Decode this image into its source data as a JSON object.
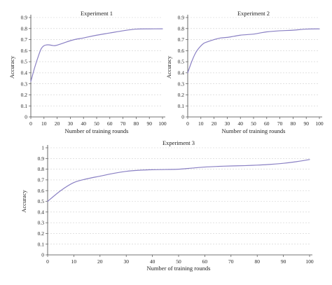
{
  "chart_data": [
    {
      "type": "line",
      "title": "Experiment 1",
      "xlabel": "Number of training rounds",
      "ylabel": "Accuracy",
      "xlim": [
        0,
        100
      ],
      "ylim": [
        0,
        0.9
      ],
      "xticks": [
        "0",
        "10",
        "20",
        "30",
        "40",
        "50",
        "60",
        "70",
        "80",
        "90",
        "100"
      ],
      "yticks": [
        "0",
        "0.1",
        "0.2",
        "0.3",
        "0.4",
        "0.5",
        "0.6",
        "0.7",
        "0.8",
        "0.9"
      ],
      "grid": "horizontal dashed",
      "series": [
        {
          "color": "#8a80c4",
          "x": [
            0,
            3,
            6,
            8,
            10,
            12,
            14,
            16,
            18,
            20,
            25,
            30,
            35,
            40,
            50,
            60,
            70,
            80,
            90,
            100
          ],
          "y": [
            0.32,
            0.45,
            0.56,
            0.62,
            0.645,
            0.652,
            0.652,
            0.648,
            0.645,
            0.65,
            0.67,
            0.69,
            0.705,
            0.715,
            0.74,
            0.76,
            0.78,
            0.795,
            0.797,
            0.798
          ]
        }
      ]
    },
    {
      "type": "line",
      "title": "Experiment 2",
      "xlabel": "Number of training rounds",
      "ylabel": "Accuracy",
      "xlim": [
        0,
        100
      ],
      "ylim": [
        0,
        0.9
      ],
      "xticks": [
        "0",
        "10",
        "20",
        "30",
        "40",
        "50",
        "60",
        "70",
        "80",
        "90",
        "100"
      ],
      "yticks": [
        "0",
        "0.1",
        "0.2",
        "0.3",
        "0.4",
        "0.5",
        "0.6",
        "0.7",
        "0.8",
        "0.9"
      ],
      "grid": "horizontal dashed",
      "series": [
        {
          "color": "#8a80c4",
          "x": [
            0,
            3,
            6,
            9,
            12,
            15,
            20,
            25,
            30,
            35,
            40,
            45,
            50,
            55,
            60,
            70,
            80,
            90,
            100
          ],
          "y": [
            0.4,
            0.5,
            0.58,
            0.63,
            0.665,
            0.68,
            0.7,
            0.715,
            0.72,
            0.73,
            0.74,
            0.745,
            0.75,
            0.76,
            0.77,
            0.78,
            0.785,
            0.795,
            0.797
          ]
        }
      ]
    },
    {
      "type": "line",
      "title": "Experiment 3",
      "xlabel": "Number of training rounds",
      "ylabel": "Accuracy",
      "xlim": [
        0,
        100
      ],
      "ylim": [
        0,
        1
      ],
      "xticks": [
        "0",
        "10",
        "20",
        "30",
        "40",
        "50",
        "60",
        "70",
        "80",
        "90",
        "100"
      ],
      "yticks": [
        "0",
        "0.1",
        "0.2",
        "0.3",
        "0.4",
        "0.5",
        "0.6",
        "0.7",
        "0.8",
        "0.9",
        "1"
      ],
      "grid": "horizontal dashed",
      "series": [
        {
          "color": "#8a80c4",
          "x": [
            0,
            5,
            10,
            15,
            20,
            25,
            30,
            35,
            40,
            45,
            50,
            55,
            60,
            65,
            70,
            75,
            80,
            85,
            90,
            95,
            100
          ],
          "y": [
            0.5,
            0.6,
            0.675,
            0.71,
            0.735,
            0.76,
            0.78,
            0.79,
            0.795,
            0.797,
            0.8,
            0.81,
            0.82,
            0.826,
            0.83,
            0.833,
            0.838,
            0.845,
            0.855,
            0.87,
            0.89
          ]
        }
      ]
    }
  ]
}
